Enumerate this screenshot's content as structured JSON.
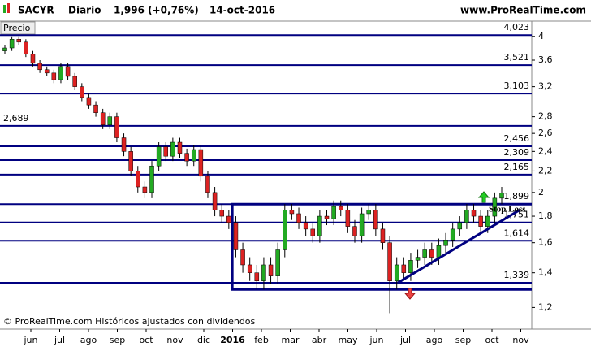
{
  "chart_data": {
    "type": "candlestick",
    "symbol": "SACYR",
    "period": "Diario",
    "price": "1,996 (+0,76%)",
    "date": "14-oct-2016",
    "site": "www.ProRealTime.com",
    "y_label": "Precio",
    "footer": "© ProRealTime.com  Históricos ajustados con dividendos",
    "annotation": "Stop Loss",
    "log_scale": true,
    "ylim": [
      1.11,
      4.25
    ],
    "yticks": [
      {
        "value": 1.2,
        "label": "1,2"
      },
      {
        "value": 1.4,
        "label": "1,4"
      },
      {
        "value": 1.6,
        "label": "1,6"
      },
      {
        "value": 1.8,
        "label": "1,8"
      },
      2,
      {
        "value": 2.2,
        "label": "2,2"
      },
      {
        "value": 2.4,
        "label": "2,4"
      },
      {
        "value": 2.6,
        "label": "2,6"
      },
      {
        "value": 2.8,
        "label": "2,8"
      },
      {
        "value": 3.2,
        "label": "3,2"
      },
      {
        "value": 3.6,
        "label": "3,6"
      },
      4
    ],
    "x_labels": [
      "jun",
      "jul",
      "ago",
      "sep",
      "oct",
      "nov",
      "dic",
      "2016",
      "feb",
      "mar",
      "abr",
      "may",
      "jun",
      "jul",
      "ago",
      "sep",
      "oct",
      "nov"
    ],
    "up_color": "#22aa22",
    "down_color": "#dd2222",
    "line_color": "#000080",
    "levels": [
      {
        "value": 4.023,
        "label": "4,023",
        "label_side": "right"
      },
      {
        "value": 3.521,
        "label": "3,521",
        "label_side": "right"
      },
      {
        "value": 3.103,
        "label": "3,103",
        "label_side": "right"
      },
      {
        "value": 2.689,
        "label": "2,689",
        "label_side": "left"
      },
      {
        "value": 2.456,
        "label": "2,456",
        "label_side": "right"
      },
      {
        "value": 2.309,
        "label": "2,309",
        "label_side": "right"
      },
      {
        "value": 2.165,
        "label": "2,165",
        "label_side": "right"
      },
      {
        "value": 1.899,
        "label": "1,899",
        "label_side": "right"
      },
      {
        "value": 1.751,
        "label": "1,751",
        "label_side": "right"
      },
      {
        "value": 1.614,
        "label": "1,614",
        "label_side": "right"
      },
      {
        "value": 1.339,
        "label": "1,339",
        "label_side": "right"
      }
    ],
    "box": [
      1.899,
      1.3
    ],
    "trendline": [
      1.339,
      1.85
    ],
    "open": [
      3.75,
      3.8,
      3.95,
      3.9,
      3.7,
      3.55,
      3.45,
      3.4,
      3.3,
      3.5,
      3.35,
      3.2,
      3.05,
      2.95,
      2.85,
      2.7,
      2.8,
      2.55,
      2.4,
      2.2,
      2.05,
      2.0,
      2.25,
      2.45,
      2.35,
      2.5,
      2.38,
      2.3,
      2.42,
      2.15,
      2.0,
      1.85,
      1.8,
      1.75,
      1.55,
      1.45,
      1.4,
      1.35,
      1.45,
      1.38,
      1.55,
      1.85,
      1.82,
      1.75,
      1.7,
      1.65,
      1.8,
      1.78,
      1.88,
      1.85,
      1.72,
      1.65,
      1.82,
      1.85,
      1.7,
      1.6,
      1.35,
      1.45,
      1.4,
      1.48,
      1.5,
      1.55,
      1.5,
      1.58,
      1.62,
      1.7,
      1.75,
      1.85,
      1.8,
      1.72,
      1.8,
      1.95
    ],
    "high": [
      3.85,
      4.0,
      4.0,
      3.95,
      3.75,
      3.6,
      3.5,
      3.45,
      3.55,
      3.55,
      3.4,
      3.25,
      3.1,
      3.0,
      2.9,
      2.85,
      2.85,
      2.6,
      2.45,
      2.25,
      2.1,
      2.3,
      2.5,
      2.5,
      2.55,
      2.55,
      2.43,
      2.47,
      2.47,
      2.2,
      2.05,
      1.9,
      1.85,
      1.8,
      1.6,
      1.5,
      1.45,
      1.5,
      1.5,
      1.6,
      1.9,
      1.9,
      1.87,
      1.8,
      1.75,
      1.85,
      1.85,
      1.93,
      1.93,
      1.9,
      1.77,
      1.87,
      1.9,
      1.9,
      1.75,
      1.65,
      1.5,
      1.5,
      1.53,
      1.55,
      1.6,
      1.6,
      1.63,
      1.67,
      1.75,
      1.8,
      1.9,
      1.9,
      1.85,
      1.85,
      2.0,
      2.05
    ],
    "low": [
      3.7,
      3.75,
      3.85,
      3.65,
      3.5,
      3.4,
      3.35,
      3.25,
      3.25,
      3.3,
      3.15,
      3.0,
      2.9,
      2.8,
      2.65,
      2.65,
      2.5,
      2.35,
      2.15,
      2.0,
      1.95,
      1.95,
      2.2,
      2.3,
      2.3,
      2.33,
      2.25,
      2.25,
      2.1,
      1.95,
      1.8,
      1.75,
      1.7,
      1.5,
      1.4,
      1.35,
      1.3,
      1.3,
      1.33,
      1.33,
      1.5,
      1.77,
      1.7,
      1.65,
      1.6,
      1.6,
      1.73,
      1.73,
      1.8,
      1.67,
      1.6,
      1.6,
      1.77,
      1.65,
      1.55,
      1.17,
      1.3,
      1.35,
      1.35,
      1.43,
      1.45,
      1.45,
      1.45,
      1.53,
      1.57,
      1.65,
      1.7,
      1.75,
      1.67,
      1.67,
      1.75,
      1.9
    ],
    "close": [
      3.8,
      3.95,
      3.9,
      3.7,
      3.55,
      3.45,
      3.4,
      3.3,
      3.5,
      3.35,
      3.2,
      3.05,
      2.95,
      2.85,
      2.7,
      2.8,
      2.55,
      2.4,
      2.2,
      2.05,
      2.0,
      2.25,
      2.45,
      2.35,
      2.5,
      2.38,
      2.3,
      2.42,
      2.15,
      2.0,
      1.85,
      1.8,
      1.75,
      1.55,
      1.45,
      1.4,
      1.35,
      1.45,
      1.38,
      1.55,
      1.85,
      1.82,
      1.75,
      1.7,
      1.65,
      1.8,
      1.78,
      1.88,
      1.85,
      1.72,
      1.65,
      1.82,
      1.85,
      1.7,
      1.6,
      1.35,
      1.45,
      1.4,
      1.48,
      1.5,
      1.55,
      1.5,
      1.58,
      1.62,
      1.7,
      1.75,
      1.85,
      1.8,
      1.72,
      1.8,
      1.95,
      1.996
    ]
  }
}
